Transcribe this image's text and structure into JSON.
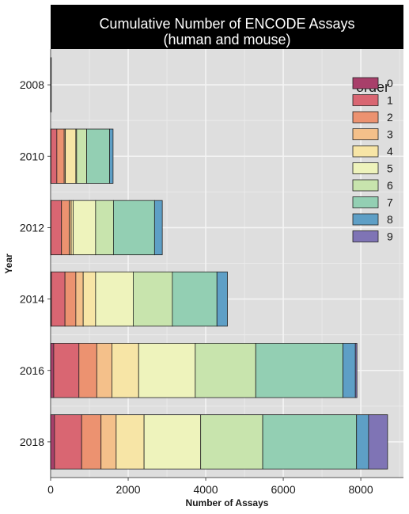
{
  "chart_data": {
    "type": "bar",
    "orientation": "horizontal",
    "stacked": true,
    "title_lines": [
      "Cumulative Number of ENCODE Assays",
      "(human and mouse)"
    ],
    "xlabel": "Number of Assays",
    "ylabel": "Year",
    "xlim": [
      0,
      9100
    ],
    "xticks": [
      0,
      2000,
      4000,
      6000,
      8000
    ],
    "xtick_labels": [
      "0",
      "2000",
      "4000",
      "6000",
      "8000"
    ],
    "categories": [
      "2008",
      "2010",
      "2012",
      "2014",
      "2016",
      "2018"
    ],
    "legend_title": "order",
    "legend_position": "right",
    "grid": true,
    "series": [
      {
        "name": "0",
        "color": "#A83F6A",
        "values": [
          10,
          10,
          10,
          20,
          80,
          100
        ]
      },
      {
        "name": "1",
        "color": "#D96672",
        "values": [
          0,
          150,
          270,
          350,
          650,
          700
        ]
      },
      {
        "name": "2",
        "color": "#EC9270",
        "values": [
          0,
          190,
          200,
          280,
          460,
          500
        ]
      },
      {
        "name": "3",
        "color": "#F4C08A",
        "values": [
          0,
          30,
          50,
          190,
          390,
          390
        ]
      },
      {
        "name": "4",
        "color": "#F7E5A6",
        "values": [
          0,
          270,
          50,
          320,
          690,
          720
        ]
      },
      {
        "name": "5",
        "color": "#EEF3BC",
        "values": [
          0,
          20,
          580,
          970,
          1460,
          1460
        ]
      },
      {
        "name": "6",
        "color": "#C8E4AD",
        "values": [
          0,
          260,
          460,
          1010,
          1560,
          1600
        ]
      },
      {
        "name": "7",
        "color": "#93CFB3",
        "values": [
          0,
          590,
          1060,
          1150,
          2250,
          2420
        ]
      },
      {
        "name": "8",
        "color": "#5E9FC6",
        "values": [
          0,
          90,
          200,
          270,
          320,
          310
        ]
      },
      {
        "name": "9",
        "color": "#7F74B5",
        "values": [
          0,
          0,
          0,
          0,
          40,
          490
        ]
      }
    ]
  }
}
